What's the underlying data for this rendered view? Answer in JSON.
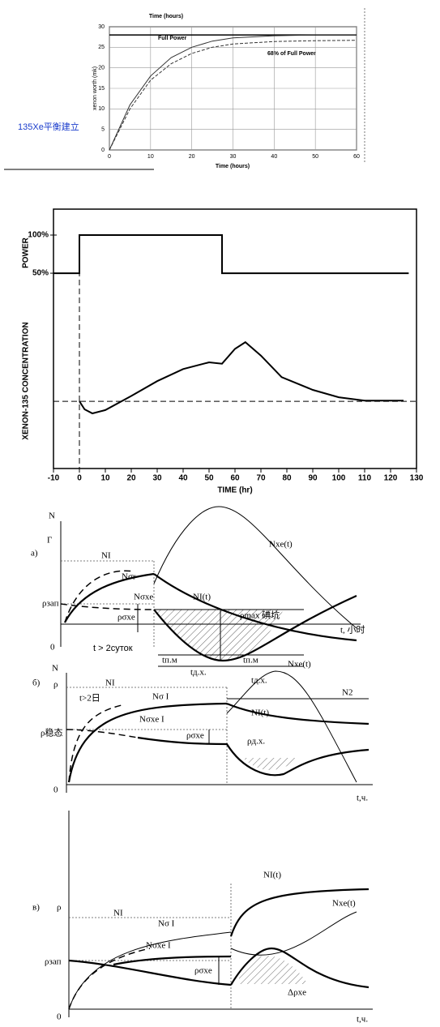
{
  "chart_data": [
    {
      "type": "line",
      "title": "Time (hours)",
      "xlabel": "Time (hours)",
      "ylabel": "xenon worth (mk)",
      "caption": "135Xe平衡建立",
      "xlim": [
        0,
        60
      ],
      "xticks": [
        0,
        10,
        20,
        30,
        40,
        50,
        60
      ],
      "ylim": [
        0,
        30
      ],
      "yticks": [
        0,
        5,
        10,
        15,
        20,
        25,
        30
      ],
      "grid": true,
      "reference_line": 28,
      "series": [
        {
          "name": "Full Power",
          "color": "#333333",
          "dash": false,
          "x": [
            0,
            5,
            10,
            15,
            20,
            25,
            30,
            40,
            50,
            60
          ],
          "values": [
            0,
            11,
            18,
            22.5,
            25,
            26.5,
            27.3,
            27.8,
            28,
            28
          ]
        },
        {
          "name": "68% of Full Power",
          "color": "#333333",
          "dash": true,
          "x": [
            0,
            5,
            10,
            15,
            20,
            25,
            30,
            40,
            50,
            60
          ],
          "values": [
            0,
            10,
            17,
            21,
            23.5,
            25,
            25.8,
            26.4,
            26.6,
            26.7
          ]
        }
      ]
    },
    {
      "type": "line",
      "xlabel": "TIME (hr)",
      "ylabel": "POWER",
      "y2label": "XENON-135 CONCENTRATION",
      "xlim": [
        -10,
        130
      ],
      "xticks": [
        -10,
        0,
        10,
        20,
        30,
        40,
        50,
        60,
        70,
        80,
        90,
        100,
        110,
        120,
        130
      ],
      "ylim": [
        -206,
        134
      ],
      "yticks": [
        {
          "value": 50,
          "label": "50%"
        },
        {
          "value": 100,
          "label": "100%"
        }
      ],
      "y2lim": [
        0,
        3.86
      ],
      "reference_line_y2": 1,
      "reference_line_x": 0,
      "series": [
        {
          "color": "#000000",
          "x": [
            -10,
            0,
            0,
            55,
            55,
            127
          ],
          "values": [
            50,
            50,
            100,
            100,
            50,
            50
          ]
        },
        {
          "color": "#000000",
          "axis": "y2",
          "x": [
            0,
            2,
            5,
            10,
            20,
            30,
            40,
            50,
            55,
            60,
            64,
            70,
            78,
            90,
            100,
            110,
            125
          ],
          "values": [
            1,
            0.88,
            0.82,
            0.87,
            1.08,
            1.3,
            1.48,
            1.58,
            1.56,
            1.78,
            1.88,
            1.68,
            1.36,
            1.17,
            1.06,
            1.01,
            1.01
          ]
        }
      ]
    }
  ],
  "diagrams": [
    {
      "label": "a)",
      "texts": [
        "N",
        "Γ",
        "NI",
        "Nσr",
        "Nσxe",
        "Nxe(t)",
        "NI(t)",
        "ρзап",
        "ρσxe",
        "ρmax 碘坑",
        "t > 2суток",
        "0",
        "t, 小时",
        "tп.м",
        "tд.х.",
        "tп.м",
        "tд.х."
      ]
    },
    {
      "label": "б)",
      "texts": [
        "N",
        "ρ",
        "NI",
        "t>2日",
        "Nσ I",
        "Nσxe I",
        "Nxe(t)",
        "NI(t)",
        "N2",
        "ρ稳态",
        "ρσxe",
        "ρд.х.",
        "0",
        "t,ч."
      ]
    },
    {
      "label": "в)",
      "texts": [
        "ρ",
        "NI",
        "NI(t)",
        "Nσ I",
        "Nxe(t)",
        "Nσxe I",
        "ρзап",
        "ρσxe",
        "Δρxe",
        "0",
        "t,ч."
      ]
    }
  ]
}
